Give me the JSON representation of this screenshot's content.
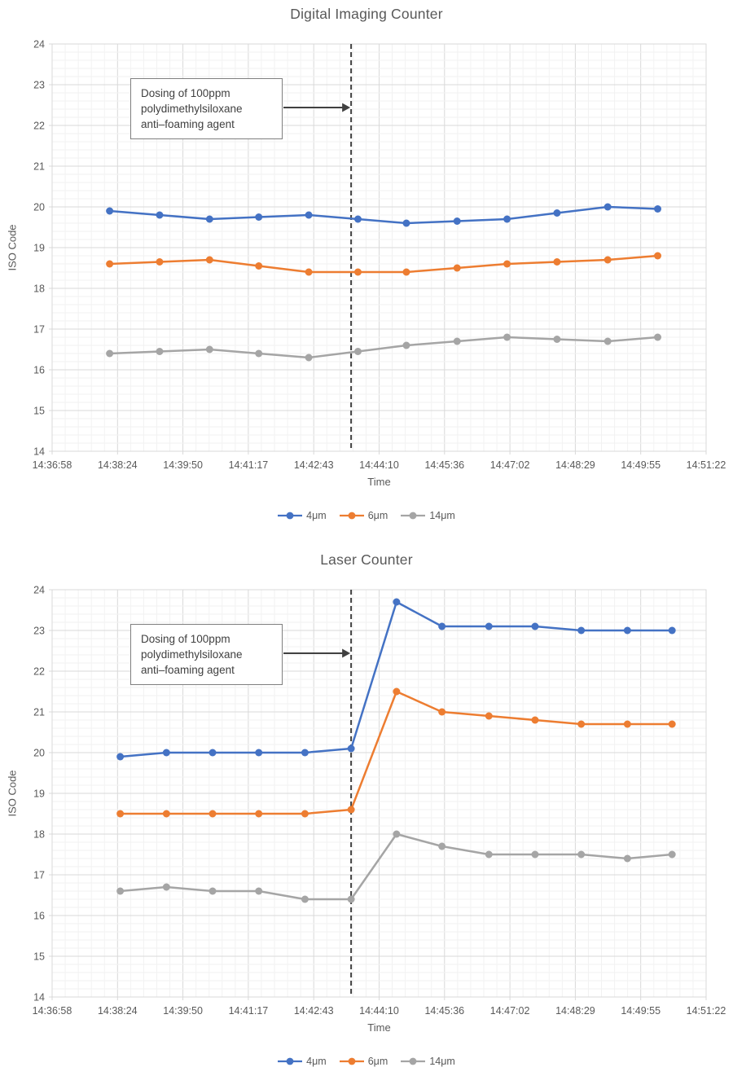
{
  "colors": {
    "series_4um": "#4472C4",
    "series_6um": "#ED7D31",
    "series_14um": "#A5A5A5",
    "grid_major": "#D9D9D9",
    "grid_minor": "#F2F2F2",
    "axis_text": "#595959",
    "annotation_text": "#404040",
    "annotation_border": "#7F7F7F",
    "dashed_line": "#404040",
    "background": "#FFFFFF"
  },
  "chart_data": [
    {
      "type": "line",
      "title": "Digital Imaging Counter",
      "xlabel": "Time",
      "ylabel": "ISO Code",
      "ylim": [
        14,
        24
      ],
      "y_ticks": [
        14,
        15,
        16,
        17,
        18,
        19,
        20,
        21,
        22,
        23,
        24
      ],
      "y_minor_step": 0.2,
      "grid": "major+minor",
      "legend_position": "bottom",
      "x_ticks": [
        "14:36:58",
        "14:38:24",
        "14:39:50",
        "14:41:17",
        "14:42:43",
        "14:44:10",
        "14:45:36",
        "14:47:02",
        "14:48:29",
        "14:49:55",
        "14:51:22"
      ],
      "x_range_seconds": [
        0,
        864
      ],
      "x_seconds": [
        76,
        142,
        208,
        273,
        339,
        404,
        468,
        535,
        601,
        667,
        734,
        800
      ],
      "event_line_seconds": 395,
      "annotation": {
        "lines": [
          "Dosing of 100ppm",
          "polydimethylsiloxane",
          "anti–foaming agent"
        ]
      },
      "series": [
        {
          "name": "4μm",
          "color_key": "series_4um",
          "values": [
            19.9,
            19.8,
            19.7,
            19.75,
            19.8,
            19.7,
            19.6,
            19.65,
            19.7,
            19.85,
            20.0,
            19.95
          ]
        },
        {
          "name": "6μm",
          "color_key": "series_6um",
          "values": [
            18.6,
            18.65,
            18.7,
            18.55,
            18.4,
            18.4,
            18.4,
            18.5,
            18.6,
            18.65,
            18.7,
            18.8
          ]
        },
        {
          "name": "14μm",
          "color_key": "series_14um",
          "values": [
            16.4,
            16.45,
            16.5,
            16.4,
            16.3,
            16.45,
            16.6,
            16.7,
            16.8,
            16.75,
            16.7,
            16.8
          ]
        }
      ]
    },
    {
      "type": "line",
      "title": "Laser Counter",
      "xlabel": "Time",
      "ylabel": "ISO Code",
      "ylim": [
        14,
        24
      ],
      "y_ticks": [
        14,
        15,
        16,
        17,
        18,
        19,
        20,
        21,
        22,
        23,
        24
      ],
      "y_minor_step": 0.2,
      "grid": "major+minor",
      "legend_position": "bottom",
      "x_ticks": [
        "14:36:58",
        "14:38:24",
        "14:39:50",
        "14:41:17",
        "14:42:43",
        "14:44:10",
        "14:45:36",
        "14:47:02",
        "14:48:29",
        "14:49:55",
        "14:51:22"
      ],
      "x_range_seconds": [
        0,
        864
      ],
      "x_seconds": [
        90,
        151,
        212,
        273,
        334,
        395,
        455,
        515,
        577,
        638,
        699,
        760,
        819
      ],
      "event_line_seconds": 395,
      "annotation": {
        "lines": [
          "Dosing of 100ppm",
          "polydimethylsiloxane",
          "anti–foaming agent"
        ]
      },
      "series": [
        {
          "name": "4μm",
          "color_key": "series_4um",
          "values": [
            19.9,
            20.0,
            20.0,
            20.0,
            20.0,
            20.1,
            23.7,
            23.1,
            23.1,
            23.1,
            23.0,
            23.0,
            23.0
          ]
        },
        {
          "name": "6μm",
          "color_key": "series_6um",
          "values": [
            18.5,
            18.5,
            18.5,
            18.5,
            18.5,
            18.6,
            21.5,
            21.0,
            20.9,
            20.8,
            20.7,
            20.7,
            20.7
          ]
        },
        {
          "name": "14μm",
          "color_key": "series_14um",
          "values": [
            16.6,
            16.7,
            16.6,
            16.6,
            16.4,
            16.4,
            18.0,
            17.7,
            17.5,
            17.5,
            17.5,
            17.4,
            17.5
          ]
        }
      ]
    }
  ]
}
